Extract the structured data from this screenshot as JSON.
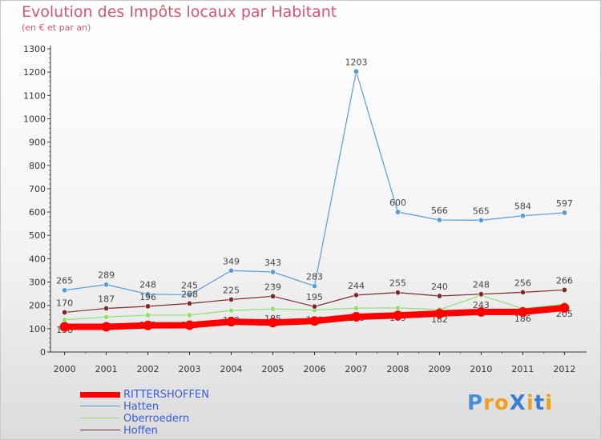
{
  "title": "Evolution des Impôts locaux par Habitant",
  "subtitle": "(en € et par an)",
  "logo_text": "ProXiti",
  "chart_data": {
    "type": "line",
    "title": "Evolution des Impôts locaux par Habitant",
    "subtitle": "(en € et par an)",
    "xlabel": "",
    "ylabel": "",
    "x": [
      "2000",
      "2001",
      "2002",
      "2003",
      "2004",
      "2005",
      "2006",
      "2007",
      "2008",
      "2009",
      "2010",
      "2011",
      "2012"
    ],
    "ylim": [
      0,
      1300
    ],
    "yticks": [
      0,
      100,
      200,
      300,
      400,
      500,
      600,
      700,
      800,
      900,
      1000,
      1100,
      1200,
      1300
    ],
    "grid": false,
    "legend_position": "bottom-left",
    "series": [
      {
        "name": "RITTERSHOFFEN",
        "color": "#ff0000",
        "values": [
          108,
          108,
          114,
          115,
          130,
          126,
          133,
          151,
          157,
          165,
          172,
          172,
          189
        ],
        "labels": []
      },
      {
        "name": "Hatten",
        "color": "#5b9bd5",
        "values": [
          265,
          289,
          248,
          245,
          349,
          343,
          283,
          1203,
          600,
          566,
          565,
          584,
          597
        ],
        "labels": [
          "265",
          "289",
          "248",
          "245",
          "349",
          "343",
          "283",
          "1203",
          "600",
          "566",
          "565",
          "584",
          "597"
        ]
      },
      {
        "name": "Oberroedern",
        "color": "#90e070",
        "values": [
          138,
          150,
          158,
          158,
          178,
          185,
          180,
          188,
          189,
          182,
          243,
          186,
          205
        ],
        "labels": [
          "138",
          "150",
          "158",
          "158",
          "178",
          "185",
          "180",
          "188",
          "189",
          "182",
          "243",
          "186",
          "205"
        ]
      },
      {
        "name": "Hoffen",
        "color": "#7a2a2a",
        "values": [
          170,
          187,
          196,
          208,
          225,
          239,
          195,
          244,
          255,
          240,
          248,
          256,
          266
        ],
        "labels": [
          "170",
          "187",
          "196",
          "208",
          "225",
          "239",
          "195",
          "244",
          "255",
          "240",
          "248",
          "256",
          "266"
        ]
      }
    ]
  }
}
